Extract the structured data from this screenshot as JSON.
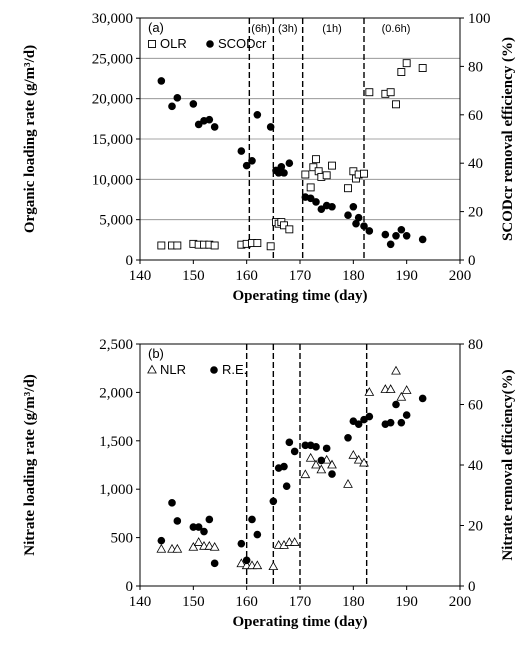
{
  "chart_data": [
    {
      "type": "scatter",
      "panel_label": "(a)",
      "xlabel": "Operating time (day)",
      "ylabel": "Organic loading rate (g/m³/d)",
      "y2label": "SCODcr removal efficiency (%)",
      "xlim": [
        140,
        200
      ],
      "xticks": [
        140,
        150,
        160,
        170,
        180,
        190,
        200
      ],
      "xtick_labels": [
        "140",
        "150",
        "160",
        "170",
        "180",
        "190",
        "200"
      ],
      "ylim": [
        0,
        30000
      ],
      "yticks": [
        0,
        5000,
        10000,
        15000,
        20000,
        25000,
        30000
      ],
      "ytick_labels": [
        "0",
        "5,000",
        "10,000",
        "15,000",
        "20,000",
        "25,000",
        "30,000"
      ],
      "y2lim": [
        0,
        100
      ],
      "y2ticks": [
        0,
        20,
        40,
        60,
        80,
        100
      ],
      "y2tick_labels": [
        "0",
        "20",
        "40",
        "60",
        "80",
        "100"
      ],
      "grid": "horizontal",
      "legend": "top-left",
      "phase_lines": [
        160.5,
        165,
        170.5,
        182
      ],
      "phase_labels": [
        {
          "text": "(6h)",
          "x": 162.7
        },
        {
          "text": "(3h)",
          "x": 167.7
        },
        {
          "text": "(1h)",
          "x": 176
        },
        {
          "text": "(0.6h)",
          "x": 188
        }
      ],
      "series": [
        {
          "name": "OLR",
          "axis": "left",
          "marker": "open-square",
          "x": [
            144,
            146,
            147,
            150,
            151,
            152,
            153,
            154,
            159,
            160,
            161,
            162,
            164.5,
            165.5,
            166,
            166.5,
            167,
            168,
            171,
            172,
            172.5,
            173,
            173.5,
            174,
            175,
            176,
            179,
            180,
            180.5,
            181,
            182,
            183,
            186,
            187,
            188,
            189,
            190,
            193
          ],
          "y": [
            1800,
            1800,
            1800,
            2000,
            1900,
            1900,
            1900,
            1800,
            1900,
            2000,
            2100,
            2100,
            1700,
            4700,
            4500,
            4700,
            4300,
            3800,
            10600,
            9000,
            11500,
            12500,
            11000,
            10300,
            10500,
            11700,
            8900,
            11000,
            10100,
            10600,
            10700,
            20800,
            20600,
            20800,
            19300,
            23300,
            24400,
            23800
          ]
        },
        {
          "name": "SCODcr",
          "axis": "right",
          "marker": "filled-circle",
          "x": [
            144,
            146,
            147,
            150,
            151,
            152,
            153,
            154,
            159,
            160,
            161,
            162,
            164.5,
            165.5,
            166,
            166.5,
            167,
            168,
            171,
            172,
            173,
            174,
            175,
            176,
            179,
            180,
            180.5,
            181,
            182,
            183,
            186,
            187,
            188,
            189,
            190,
            193
          ],
          "y": [
            74,
            63.5,
            67,
            64.5,
            56,
            57.5,
            58,
            55,
            45,
            39,
            41,
            60,
            55,
            37,
            36,
            38.5,
            36,
            40,
            26,
            25.5,
            24,
            21,
            22.5,
            22,
            18.5,
            22,
            15,
            17.5,
            14,
            12,
            10.5,
            6.5,
            10,
            12.5,
            10,
            8.5
          ]
        }
      ]
    },
    {
      "type": "scatter",
      "panel_label": "(b)",
      "xlabel": "Operating time (day)",
      "ylabel": "Nitrate loading rate (g/m³/d)",
      "y2label": "Nitrate removal efficiency(%)",
      "xlim": [
        140,
        200
      ],
      "xticks": [
        140,
        150,
        160,
        170,
        180,
        190,
        200
      ],
      "xtick_labels": [
        "140",
        "150",
        "160",
        "170",
        "180",
        "190",
        "200"
      ],
      "ylim": [
        0,
        2500
      ],
      "yticks": [
        0,
        500,
        1000,
        1500,
        2000,
        2500
      ],
      "ytick_labels": [
        "0",
        "500",
        "1,000",
        "1,500",
        "2,000",
        "2,500"
      ],
      "y2lim": [
        0,
        80
      ],
      "y2ticks": [
        0,
        20,
        40,
        60,
        80
      ],
      "y2tick_labels": [
        "0",
        "20",
        "40",
        "60",
        "80"
      ],
      "grid": "none",
      "legend": "top-left",
      "phase_lines": [
        160,
        165,
        170,
        182.5
      ],
      "series": [
        {
          "name": "NLR",
          "axis": "left",
          "marker": "open-triangle",
          "x": [
            144,
            146,
            147,
            150,
            151,
            152,
            153,
            154,
            159,
            160,
            161,
            162,
            165,
            166,
            167,
            168,
            169,
            171,
            172,
            173,
            174,
            175,
            176,
            179,
            180,
            181,
            182,
            183,
            186,
            187,
            188,
            189,
            190
          ],
          "y": [
            380,
            380,
            380,
            400,
            450,
            410,
            410,
            400,
            230,
            210,
            210,
            210,
            200,
            420,
            420,
            450,
            450,
            1150,
            1320,
            1250,
            1200,
            1300,
            1250,
            1050,
            1350,
            1300,
            1270,
            2000,
            2030,
            2030,
            2220,
            1950,
            2020
          ]
        },
        {
          "name": "R.E.",
          "axis": "right",
          "marker": "filled-circle",
          "x": [
            144,
            146,
            147,
            150,
            151,
            152,
            153,
            154,
            159,
            160,
            161,
            162,
            165,
            166,
            167,
            167.5,
            168,
            169,
            171,
            172,
            173,
            174,
            175,
            176,
            179,
            180,
            181,
            182,
            183,
            186,
            187,
            188,
            189,
            190,
            193
          ],
          "y": [
            15,
            27.5,
            21.5,
            19.5,
            19.5,
            18,
            22,
            7.5,
            14,
            8.5,
            22,
            17,
            28,
            39,
            39.5,
            33,
            47.5,
            44.5,
            46.5,
            46.5,
            46,
            41.5,
            45.5,
            37,
            49,
            54.5,
            53.5,
            55,
            56,
            53.5,
            54,
            60,
            54,
            56.5,
            62
          ]
        }
      ]
    }
  ]
}
